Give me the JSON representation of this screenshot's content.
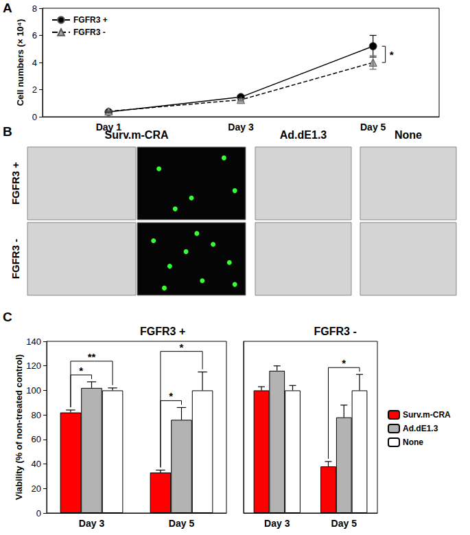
{
  "chart_data": [
    {
      "panel": "A",
      "type": "line",
      "categories": [
        "Day 1",
        "Day 3",
        "Day 5"
      ],
      "y_label": "Cell numbers (× 10⁴)",
      "ylim": [
        0,
        8
      ],
      "yticks": [
        0,
        2,
        4,
        6,
        8
      ],
      "legend": "top-left",
      "series": [
        {
          "name": "FGFR3 +",
          "color": "#000000",
          "marker": "circle",
          "line_style": "solid",
          "values": [
            0.35,
            1.45,
            5.2
          ],
          "errors": [
            0.05,
            0.1,
            0.8
          ]
        },
        {
          "name": "FGFR3 -",
          "color": "#a6a6a6",
          "marker": "triangle",
          "line_style": "dashed",
          "values": [
            0.4,
            1.25,
            4.0
          ],
          "errors": [
            0.05,
            0.08,
            0.5
          ]
        }
      ],
      "annotations": [
        {
          "text": "*",
          "category": "Day 5",
          "between": [
            "FGFR3 +",
            "FGFR3 -"
          ]
        }
      ]
    },
    {
      "panel": "C",
      "type": "bar",
      "title": "FGFR3 +",
      "categories": [
        "Day 3",
        "Day 5"
      ],
      "y_label": "Viability (% of non-treated control)",
      "ylim": [
        0,
        140
      ],
      "yticks": [
        0,
        20,
        40,
        60,
        80,
        100,
        120,
        140
      ],
      "series": [
        {
          "name": "Surv.m-CRA",
          "color": "#ff0000",
          "values": [
            82,
            33
          ],
          "errors": [
            2,
            2
          ]
        },
        {
          "name": "Ad.dE1.3",
          "color": "#b3b3b3",
          "values": [
            102,
            76
          ],
          "errors": [
            5,
            10
          ]
        },
        {
          "name": "None",
          "color": "#ffffff",
          "values": [
            100,
            100
          ],
          "errors": [
            2,
            15
          ]
        }
      ],
      "annotations": [
        {
          "text": "*",
          "category": "Day 3",
          "between": [
            "Surv.m-CRA",
            "Ad.dE1.3"
          ]
        },
        {
          "text": "**",
          "category": "Day 3",
          "between": [
            "Surv.m-CRA",
            "None"
          ]
        },
        {
          "text": "*",
          "category": "Day 5",
          "between": [
            "Surv.m-CRA",
            "Ad.dE1.3"
          ]
        },
        {
          "text": "*",
          "category": "Day 5",
          "between": [
            "Surv.m-CRA",
            "None"
          ]
        }
      ]
    },
    {
      "type": "bar",
      "title": "FGFR3 -",
      "categories": [
        "Day 3",
        "Day 5"
      ],
      "ylim": [
        0,
        140
      ],
      "tick_labels": "x",
      "legend": "right",
      "series": [
        {
          "name": "Surv.m-CRA",
          "color": "#ff0000",
          "values": [
            100,
            38
          ],
          "errors": [
            3,
            4
          ]
        },
        {
          "name": "Ad.dE1.3",
          "color": "#b3b3b3",
          "values": [
            116,
            78
          ],
          "errors": [
            4,
            10
          ]
        },
        {
          "name": "None",
          "color": "#ffffff",
          "values": [
            100,
            100
          ],
          "errors": [
            4,
            13
          ]
        }
      ],
      "annotations": [
        {
          "text": "*",
          "category": "Day 5",
          "between": [
            "Surv.m-CRA",
            "None"
          ]
        }
      ]
    }
  ],
  "image_panel": {
    "panel": "B",
    "columns": [
      "Surv.m-CRA",
      "Ad.dE1.3",
      "None"
    ],
    "rows": [
      "FGFR3 +",
      "FGFR3 -"
    ]
  }
}
